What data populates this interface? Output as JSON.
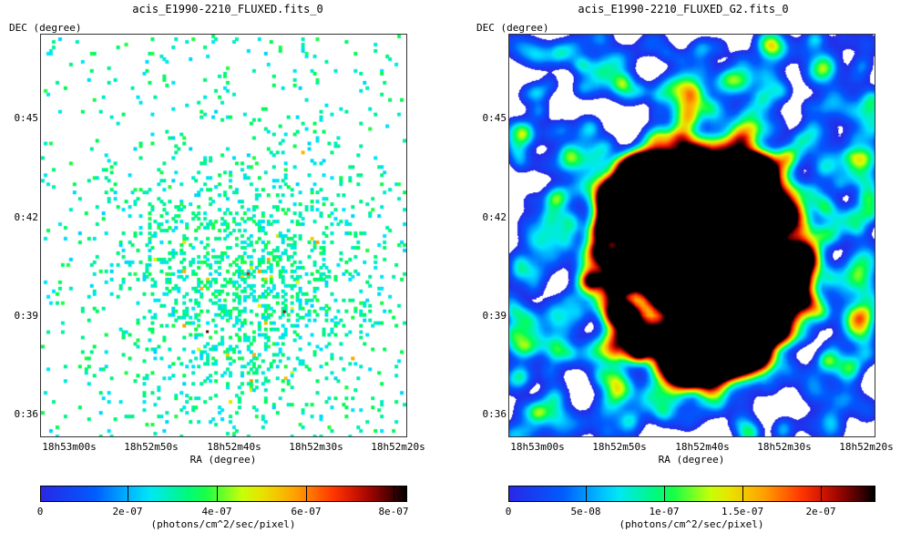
{
  "panels": [
    {
      "title": "acis_E1990-2210_FLUXED.fits_0",
      "y_label": "DEC (degree)",
      "x_label": "RA (degree)",
      "y_ticks": [
        "0:45",
        "0:42",
        "0:39",
        "0:36"
      ],
      "x_ticks": [
        "18h53m00s",
        "18h52m50s",
        "18h52m40s",
        "18h52m30s",
        "18h52m20s"
      ],
      "colorbar_ticks": [
        "0",
        "2e-07",
        "4e-07",
        "6e-07",
        "8e-07"
      ],
      "colorbar_label": "(photons/cm^2/sec/pixel)",
      "style": "sparse"
    },
    {
      "title": "acis_E1990-2210_FLUXED_G2.fits_0",
      "y_label": "DEC (degree)",
      "x_label": "RA (degree)",
      "y_ticks": [
        "0:45",
        "0:42",
        "0:39",
        "0:36"
      ],
      "x_ticks": [
        "18h53m00s",
        "18h52m50s",
        "18h52m40s",
        "18h52m30s",
        "18h52m20s"
      ],
      "colorbar_ticks": [
        "0",
        "5e-08",
        "1e-07",
        "1.5e-07",
        "2e-07"
      ],
      "colorbar_label": "(photons/cm^2/sec/pixel)",
      "style": "smoothed"
    }
  ],
  "colormap": [
    "#ffffff",
    "#0000ff",
    "#00e0ff",
    "#00ff00",
    "#ffff00",
    "#ff8000",
    "#ff0000",
    "#000000"
  ]
}
